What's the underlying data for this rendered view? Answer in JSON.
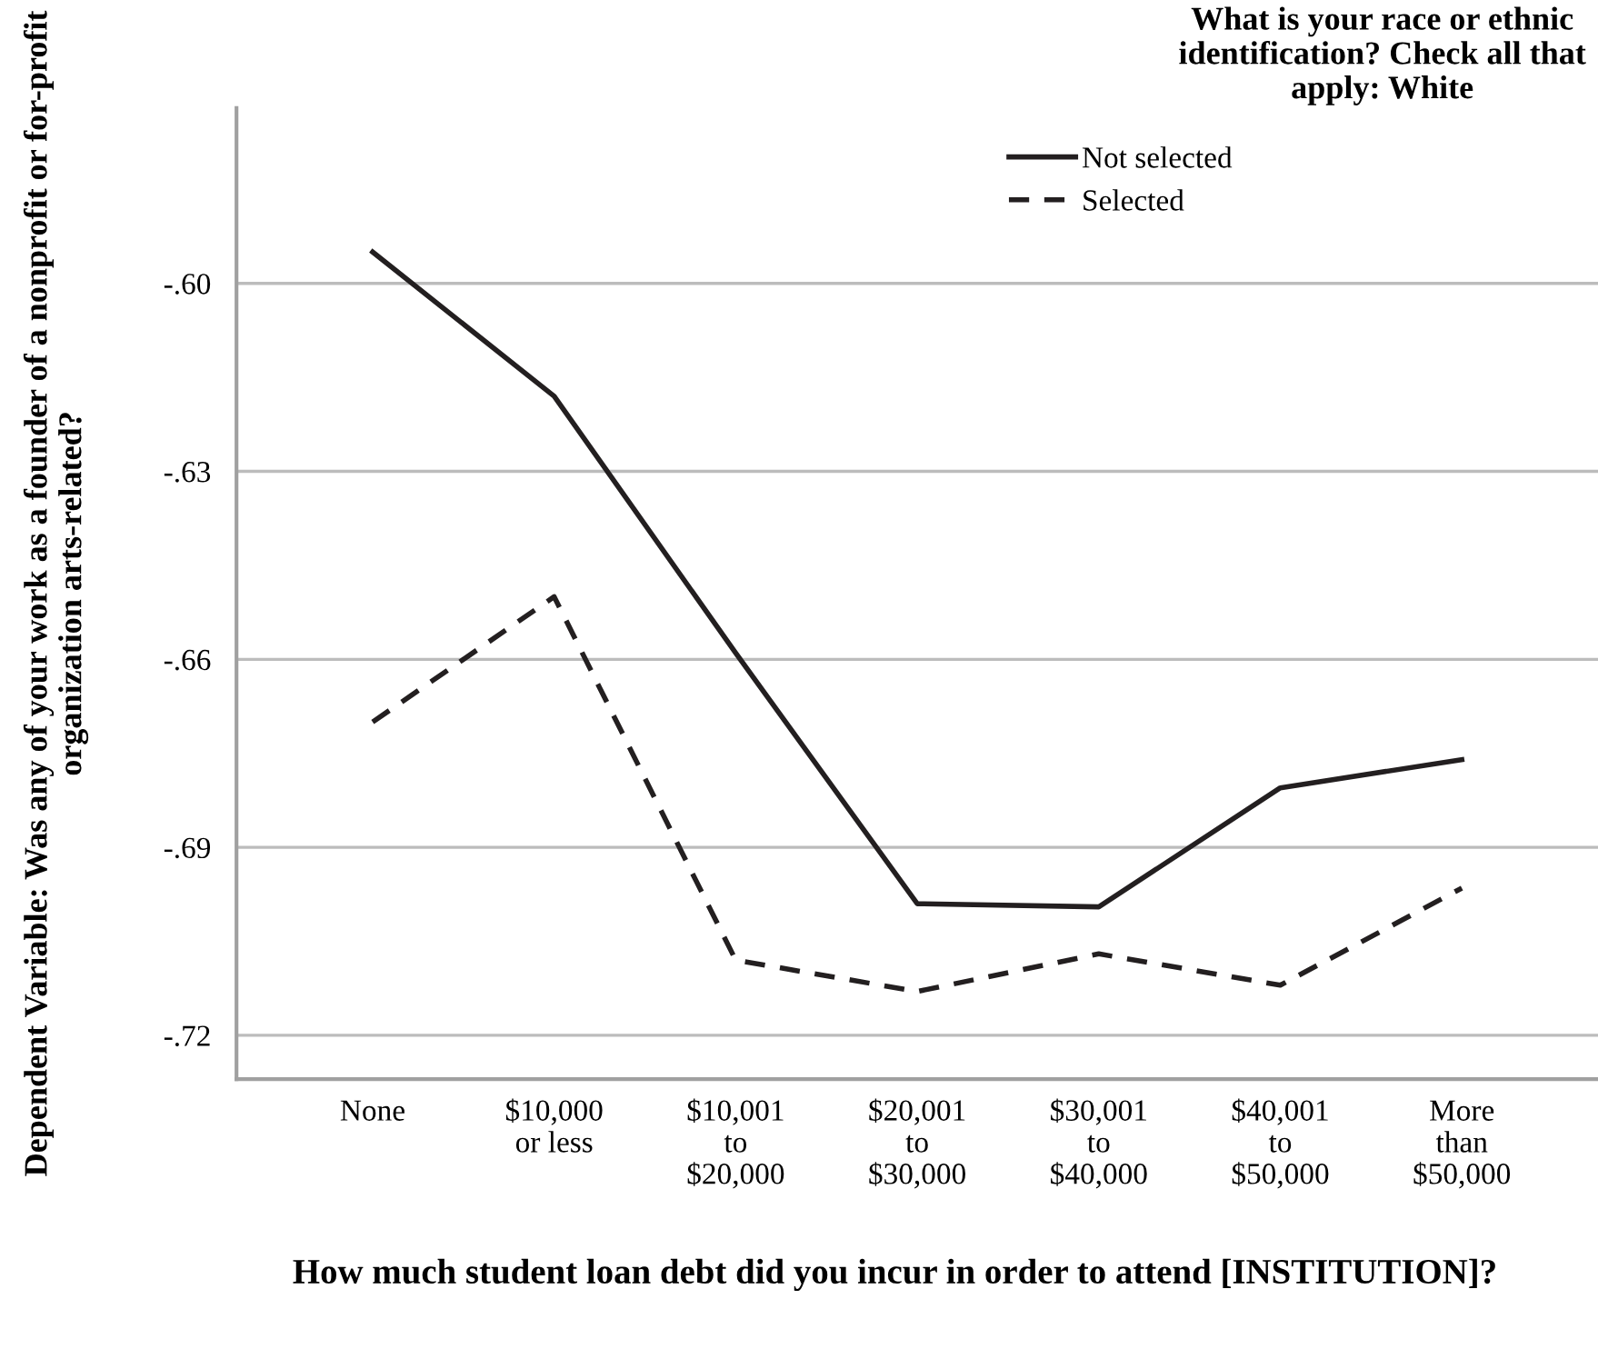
{
  "chart_data": {
    "type": "line",
    "xlabel": "How much student loan debt did you incur in order to attend [INSTITUTION]?",
    "ylabel": "Dependent Variable: Was any of your work as a founder of a nonprofit or for-profit organization arts-related?",
    "legend_title": "What is your race or ethnic identification? Check all that apply: White",
    "categories": [
      "None",
      "$10,000\nor less",
      "$10,001\nto\n$20,000",
      "$20,001\nto\n$30,000",
      "$30,001\nto\n$40,000",
      "$40,001\nto\n$50,000",
      "More\nthan\n$50,000"
    ],
    "series": [
      {
        "name": "Not selected",
        "color": "#231f20",
        "line_style": "solid",
        "values": [
          -0.595,
          -0.618,
          -0.659,
          -0.699,
          -0.6995,
          -0.6805,
          -0.676
        ]
      },
      {
        "name": "Selected",
        "color": "#231f20",
        "line_style": "dashed",
        "values": [
          -0.67,
          -0.65,
          -0.708,
          -0.713,
          -0.707,
          -0.712,
          -0.6965
        ]
      }
    ],
    "ylim": [
      -0.727,
      -0.572
    ],
    "yticks": [
      {
        "value": -0.72,
        "label": "-.72"
      },
      {
        "value": -0.69,
        "label": "-.69"
      },
      {
        "value": -0.66,
        "label": "-.66"
      },
      {
        "value": -0.63,
        "label": "-.63"
      },
      {
        "value": -0.6,
        "label": "-.60"
      }
    ],
    "grid": "y",
    "legend": "top right",
    "marker": "none"
  }
}
